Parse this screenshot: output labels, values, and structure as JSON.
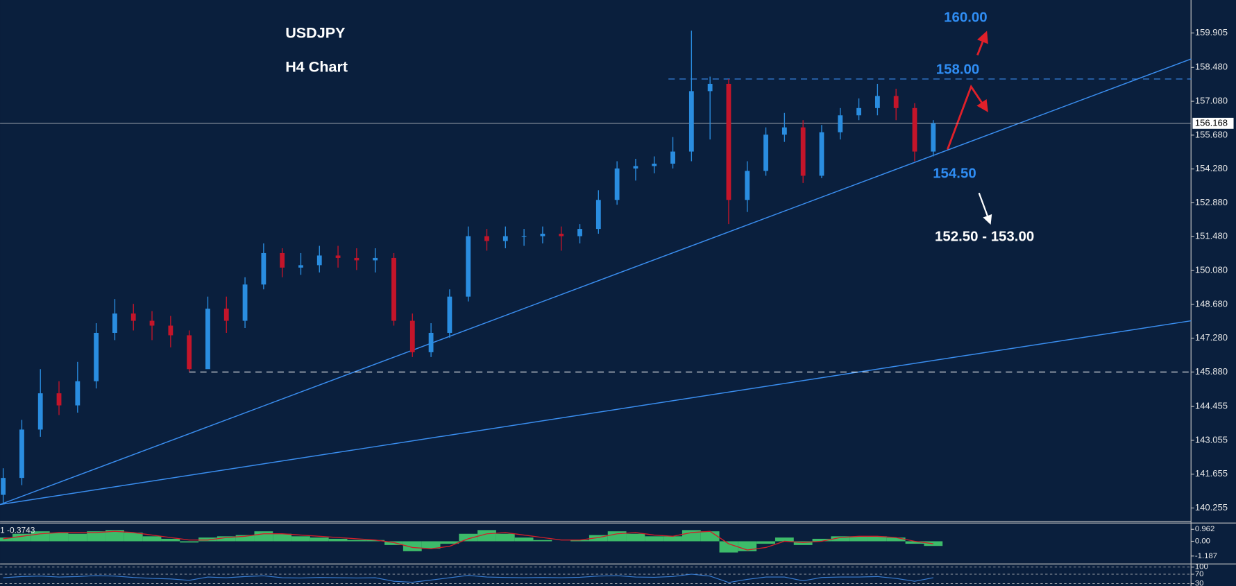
{
  "chart_data": [
    {
      "type": "candlestick",
      "title": "USDJPY",
      "subtitle": "H4 Chart",
      "open": [
        140.8,
        141.5,
        143.5,
        145.0,
        144.5,
        145.5,
        147.5,
        148.3,
        148.0,
        147.8,
        147.4,
        146.0,
        148.5,
        148.0,
        149.5,
        150.8,
        150.2,
        150.3,
        150.7,
        150.6,
        150.5,
        150.6,
        148.0,
        146.7,
        147.5,
        149.0,
        151.5,
        151.3,
        151.5,
        151.5,
        151.6,
        151.5,
        151.8,
        153.0,
        154.3,
        154.4,
        154.5,
        155.0,
        157.5,
        157.8,
        153.0,
        154.2,
        155.7,
        156.0,
        154.0,
        155.8,
        156.5,
        156.8,
        157.3,
        156.8,
        155.0
      ],
      "high": [
        141.9,
        143.9,
        146.0,
        145.5,
        146.3,
        147.9,
        148.9,
        148.7,
        148.4,
        148.2,
        147.6,
        149.0,
        149.0,
        149.8,
        151.2,
        151.0,
        150.8,
        151.1,
        151.1,
        151.0,
        151.0,
        150.8,
        148.3,
        147.9,
        149.3,
        151.9,
        151.8,
        151.9,
        151.8,
        151.9,
        151.9,
        152.0,
        153.4,
        154.6,
        154.7,
        154.8,
        155.6,
        160.0,
        158.1,
        158.0,
        154.6,
        156.0,
        156.6,
        156.3,
        156.1,
        156.8,
        157.2,
        157.8,
        157.6,
        157.0,
        156.3
      ],
      "low": [
        140.4,
        141.2,
        143.2,
        144.1,
        144.2,
        145.2,
        147.2,
        147.6,
        147.2,
        146.9,
        145.9,
        146.1,
        147.5,
        147.7,
        149.3,
        149.8,
        149.9,
        150.0,
        150.2,
        150.1,
        150.0,
        147.8,
        146.5,
        146.5,
        147.3,
        148.8,
        150.9,
        151.0,
        151.1,
        151.2,
        150.9,
        151.2,
        151.6,
        152.8,
        153.8,
        154.1,
        154.3,
        154.6,
        155.5,
        152.0,
        152.5,
        154.0,
        155.4,
        153.7,
        153.9,
        155.5,
        156.3,
        156.5,
        156.3,
        154.6,
        154.8
      ],
      "close": [
        141.5,
        143.5,
        145.0,
        144.5,
        145.5,
        147.5,
        148.3,
        148.0,
        147.8,
        147.4,
        146.0,
        148.5,
        148.0,
        149.5,
        150.8,
        150.2,
        150.3,
        150.7,
        150.6,
        150.5,
        150.6,
        148.0,
        146.7,
        147.5,
        149.0,
        151.5,
        151.3,
        151.5,
        151.5,
        151.6,
        151.5,
        151.8,
        153.0,
        154.3,
        154.4,
        154.5,
        155.0,
        157.5,
        157.8,
        153.0,
        154.2,
        155.7,
        156.0,
        154.0,
        155.8,
        156.5,
        156.8,
        157.3,
        156.8,
        155.0,
        156.168
      ],
      "up_color": "#2a8de0",
      "down_color": "#c4152a",
      "ylim": [
        139.7,
        161.27
      ],
      "yticks": [
        159.905,
        {
          "value": 158.48,
          "label": "158.480"
        },
        {
          "value": 157.08,
          "label": "157.080"
        },
        {
          "value": 155.68,
          "label": "155.680"
        },
        {
          "value": 154.28,
          "label": "154.280"
        },
        {
          "value": 152.88,
          "label": "152.880"
        },
        {
          "value": 151.48,
          "label": "151.480"
        },
        {
          "value": 150.08,
          "label": "150.080"
        },
        {
          "value": 148.68,
          "label": "148.680"
        },
        {
          "value": 147.28,
          "label": "147.280"
        },
        {
          "value": 145.88,
          "label": "145.880"
        },
        144.455,
        143.055,
        141.655,
        140.255
      ],
      "last_price": 156.168,
      "trendlines": [
        {
          "start": 140.4,
          "end": 158.83,
          "color": "#3a8ef0"
        },
        {
          "start": 140.4,
          "end": 148.0,
          "color": "#3a8ef0"
        }
      ],
      "hlines": [
        {
          "value": 158.0,
          "color": "#3a8ef0"
        },
        {
          "value": 145.88,
          "color": "#ffffff"
        }
      ],
      "annotations": [
        {
          "value": 160,
          "label": "160.00",
          "color": "#2f8cf2"
        },
        {
          "value": 158,
          "label": "158.00",
          "color": "#2f8cf2"
        },
        {
          "value": 154.5,
          "label": "154.50",
          "color": "#2f8cf2"
        },
        {
          "values": [
            152.5,
            153
          ],
          "label": "152.50 - 153.00",
          "color": "#ffffff"
        }
      ]
    },
    {
      "type": "bar",
      "label": "1 -0.3743",
      "values": [
        0.3,
        0.6,
        0.8,
        0.7,
        0.6,
        0.8,
        0.9,
        0.7,
        0.4,
        0.2,
        -0.1,
        0.3,
        0.4,
        0.5,
        0.8,
        0.6,
        0.4,
        0.3,
        0.2,
        0.1,
        0.1,
        -0.3,
        -0.8,
        -0.6,
        -0.2,
        0.6,
        0.9,
        0.6,
        0.3,
        0.1,
        0.0,
        0.1,
        0.5,
        0.8,
        0.6,
        0.4,
        0.4,
        0.9,
        0.8,
        -0.9,
        -0.8,
        -0.2,
        0.3,
        -0.3,
        0.2,
        0.4,
        0.4,
        0.4,
        0.3,
        -0.2,
        -0.3743
      ],
      "color": "#3dbb6a",
      "series": [
        {
          "color": "#d0202a",
          "values": [
            0.2,
            0.4,
            0.6,
            0.7,
            0.7,
            0.7,
            0.8,
            0.7,
            0.5,
            0.3,
            0.1,
            0.1,
            0.3,
            0.4,
            0.6,
            0.6,
            0.5,
            0.4,
            0.3,
            0.2,
            0.1,
            -0.1,
            -0.5,
            -0.6,
            -0.4,
            0.2,
            0.6,
            0.7,
            0.5,
            0.3,
            0.1,
            0.1,
            0.3,
            0.6,
            0.7,
            0.5,
            0.4,
            0.7,
            0.8,
            -0.2,
            -0.7,
            -0.5,
            0.0,
            -0.1,
            0.0,
            0.3,
            0.4,
            0.4,
            0.3,
            0.0,
            -0.2
          ]
        }
      ],
      "ylim": [
        -1.76,
        1.47
      ],
      "yticks": [
        0.962,
        {
          "value": 0,
          "label": "0.00"
        },
        -1.187
      ]
    },
    {
      "type": "line",
      "color": "#3a7fd5",
      "values": [
        55,
        60,
        62,
        58,
        60,
        64,
        62,
        56,
        52,
        50,
        44,
        58,
        55,
        60,
        63,
        55,
        54,
        56,
        55,
        54,
        55,
        40,
        36,
        45,
        55,
        65,
        58,
        56,
        55,
        56,
        55,
        57,
        62,
        64,
        58,
        57,
        60,
        70,
        62,
        35,
        48,
        58,
        58,
        42,
        56,
        58,
        58,
        60,
        52,
        40,
        55
      ],
      "ylim": [
        20,
        110
      ],
      "yticks": [
        100,
        70,
        30
      ]
    }
  ]
}
